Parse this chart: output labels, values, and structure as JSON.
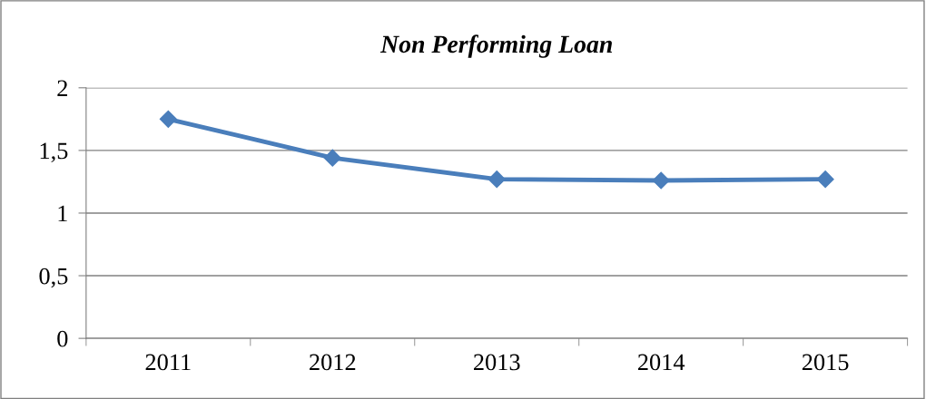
{
  "chart_data": {
    "type": "line",
    "title": "Non Performing Loan",
    "categories": [
      "2011",
      "2012",
      "2013",
      "2014",
      "2015"
    ],
    "series": [
      {
        "color": "#4a7ebb",
        "values": [
          1.75,
          1.44,
          1.27,
          1.26,
          1.27
        ]
      }
    ],
    "ylim": [
      0,
      2
    ],
    "yticks": [
      {
        "value": 0,
        "label": "0"
      },
      {
        "value": 0.5,
        "label": "0,5"
      },
      {
        "value": 1,
        "label": "1"
      },
      {
        "value": 1.5,
        "label": "1,5"
      },
      {
        "value": 2,
        "label": "2"
      }
    ],
    "grid": "y",
    "marker": "diamond",
    "line_style": "solid"
  }
}
